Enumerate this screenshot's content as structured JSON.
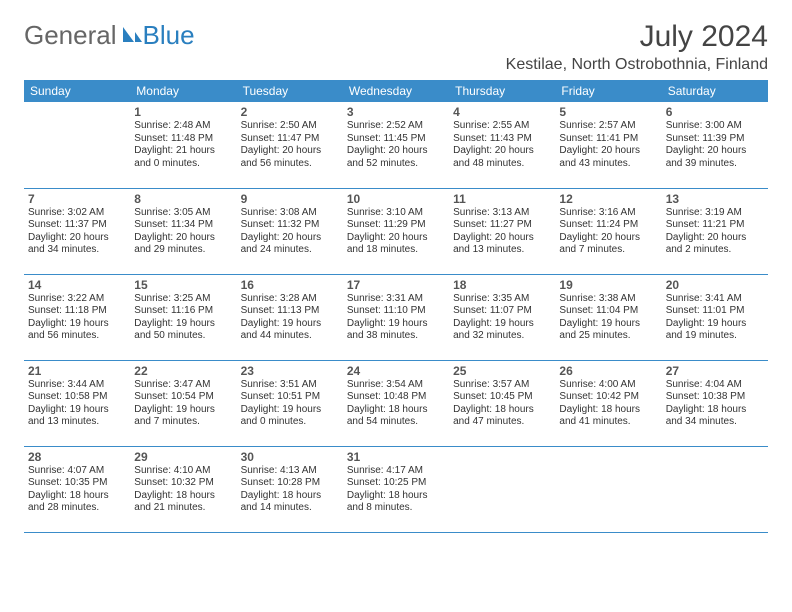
{
  "brand": {
    "part1": "General",
    "part2": "Blue"
  },
  "title": "July 2024",
  "location": "Kestilae, North Ostrobothnia, Finland",
  "colors": {
    "header_bg": "#3a8cc9",
    "header_fg": "#ffffff",
    "rule": "#3a8cc9",
    "brand_gray": "#666666",
    "brand_blue": "#2a7fbf"
  },
  "day_names": [
    "Sunday",
    "Monday",
    "Tuesday",
    "Wednesday",
    "Thursday",
    "Friday",
    "Saturday"
  ],
  "weeks": [
    [
      null,
      {
        "n": "1",
        "sr": "2:48 AM",
        "ss": "11:48 PM",
        "dl": "21 hours and 0 minutes."
      },
      {
        "n": "2",
        "sr": "2:50 AM",
        "ss": "11:47 PM",
        "dl": "20 hours and 56 minutes."
      },
      {
        "n": "3",
        "sr": "2:52 AM",
        "ss": "11:45 PM",
        "dl": "20 hours and 52 minutes."
      },
      {
        "n": "4",
        "sr": "2:55 AM",
        "ss": "11:43 PM",
        "dl": "20 hours and 48 minutes."
      },
      {
        "n": "5",
        "sr": "2:57 AM",
        "ss": "11:41 PM",
        "dl": "20 hours and 43 minutes."
      },
      {
        "n": "6",
        "sr": "3:00 AM",
        "ss": "11:39 PM",
        "dl": "20 hours and 39 minutes."
      }
    ],
    [
      {
        "n": "7",
        "sr": "3:02 AM",
        "ss": "11:37 PM",
        "dl": "20 hours and 34 minutes."
      },
      {
        "n": "8",
        "sr": "3:05 AM",
        "ss": "11:34 PM",
        "dl": "20 hours and 29 minutes."
      },
      {
        "n": "9",
        "sr": "3:08 AM",
        "ss": "11:32 PM",
        "dl": "20 hours and 24 minutes."
      },
      {
        "n": "10",
        "sr": "3:10 AM",
        "ss": "11:29 PM",
        "dl": "20 hours and 18 minutes."
      },
      {
        "n": "11",
        "sr": "3:13 AM",
        "ss": "11:27 PM",
        "dl": "20 hours and 13 minutes."
      },
      {
        "n": "12",
        "sr": "3:16 AM",
        "ss": "11:24 PM",
        "dl": "20 hours and 7 minutes."
      },
      {
        "n": "13",
        "sr": "3:19 AM",
        "ss": "11:21 PM",
        "dl": "20 hours and 2 minutes."
      }
    ],
    [
      {
        "n": "14",
        "sr": "3:22 AM",
        "ss": "11:18 PM",
        "dl": "19 hours and 56 minutes."
      },
      {
        "n": "15",
        "sr": "3:25 AM",
        "ss": "11:16 PM",
        "dl": "19 hours and 50 minutes."
      },
      {
        "n": "16",
        "sr": "3:28 AM",
        "ss": "11:13 PM",
        "dl": "19 hours and 44 minutes."
      },
      {
        "n": "17",
        "sr": "3:31 AM",
        "ss": "11:10 PM",
        "dl": "19 hours and 38 minutes."
      },
      {
        "n": "18",
        "sr": "3:35 AM",
        "ss": "11:07 PM",
        "dl": "19 hours and 32 minutes."
      },
      {
        "n": "19",
        "sr": "3:38 AM",
        "ss": "11:04 PM",
        "dl": "19 hours and 25 minutes."
      },
      {
        "n": "20",
        "sr": "3:41 AM",
        "ss": "11:01 PM",
        "dl": "19 hours and 19 minutes."
      }
    ],
    [
      {
        "n": "21",
        "sr": "3:44 AM",
        "ss": "10:58 PM",
        "dl": "19 hours and 13 minutes."
      },
      {
        "n": "22",
        "sr": "3:47 AM",
        "ss": "10:54 PM",
        "dl": "19 hours and 7 minutes."
      },
      {
        "n": "23",
        "sr": "3:51 AM",
        "ss": "10:51 PM",
        "dl": "19 hours and 0 minutes."
      },
      {
        "n": "24",
        "sr": "3:54 AM",
        "ss": "10:48 PM",
        "dl": "18 hours and 54 minutes."
      },
      {
        "n": "25",
        "sr": "3:57 AM",
        "ss": "10:45 PM",
        "dl": "18 hours and 47 minutes."
      },
      {
        "n": "26",
        "sr": "4:00 AM",
        "ss": "10:42 PM",
        "dl": "18 hours and 41 minutes."
      },
      {
        "n": "27",
        "sr": "4:04 AM",
        "ss": "10:38 PM",
        "dl": "18 hours and 34 minutes."
      }
    ],
    [
      {
        "n": "28",
        "sr": "4:07 AM",
        "ss": "10:35 PM",
        "dl": "18 hours and 28 minutes."
      },
      {
        "n": "29",
        "sr": "4:10 AM",
        "ss": "10:32 PM",
        "dl": "18 hours and 21 minutes."
      },
      {
        "n": "30",
        "sr": "4:13 AM",
        "ss": "10:28 PM",
        "dl": "18 hours and 14 minutes."
      },
      {
        "n": "31",
        "sr": "4:17 AM",
        "ss": "10:25 PM",
        "dl": "18 hours and 8 minutes."
      },
      null,
      null,
      null
    ]
  ],
  "labels": {
    "sunrise": "Sunrise: ",
    "sunset": "Sunset: ",
    "daylight": "Daylight: "
  }
}
